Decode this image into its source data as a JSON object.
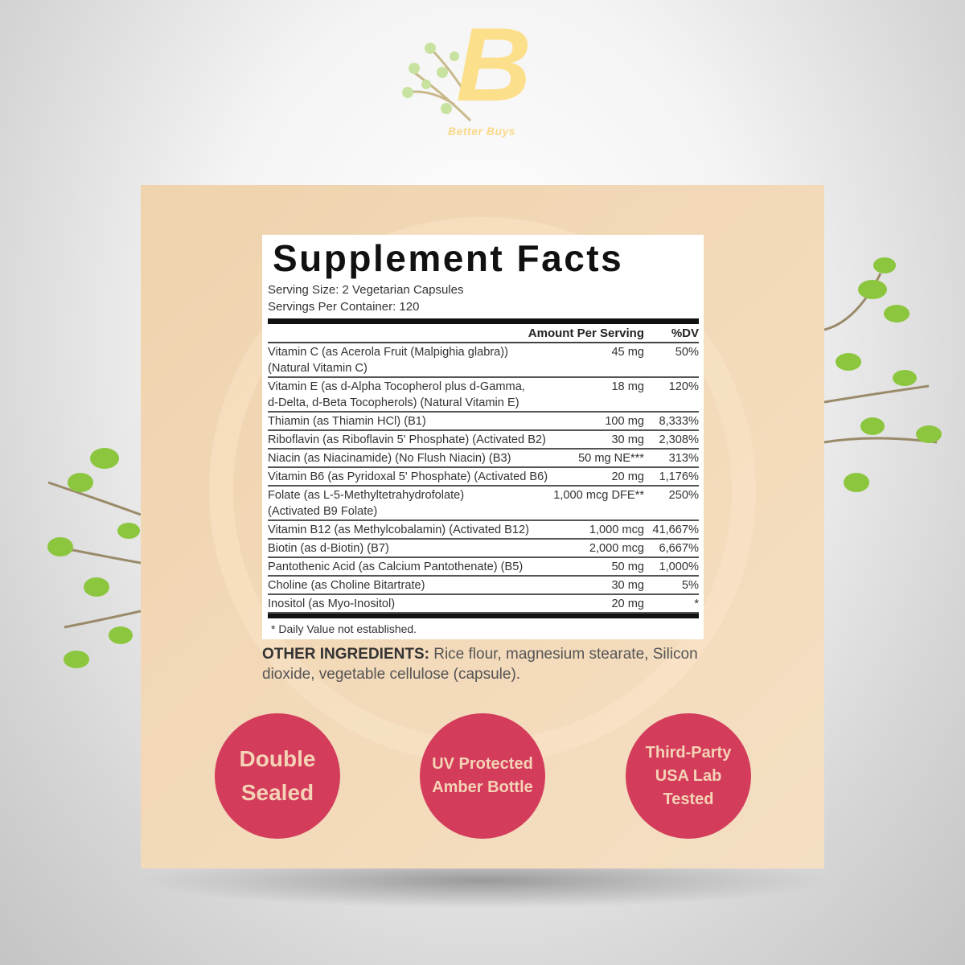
{
  "brand": {
    "name": "Better Buys",
    "letter": "B",
    "color": "#fcdf8a"
  },
  "label": {
    "title": "Supplement Facts",
    "serving_size": "Serving Size: 2 Vegetarian Capsules",
    "servings_per_container": "Servings Per Container: 120",
    "col_amount": "Amount Per Serving",
    "col_dv": "%DV",
    "rows": [
      {
        "name": "Vitamin C (as Acerola Fruit (Malpighia glabra))\n(Natural Vitamin C)",
        "amount": "45 mg",
        "dv": "50%"
      },
      {
        "name": "Vitamin E (as d-Alpha Tocopherol plus d-Gamma,\nd-Delta, d-Beta Tocopherols) (Natural Vitamin E)",
        "amount": "18 mg",
        "dv": "120%"
      },
      {
        "name": "Thiamin (as Thiamin HCl) (B1)",
        "amount": "100 mg",
        "dv": "8,333%"
      },
      {
        "name": "Riboflavin (as Riboflavin 5' Phosphate) (Activated B2)",
        "amount": "30 mg",
        "dv": "2,308%"
      },
      {
        "name": "Niacin (as Niacinamide) (No Flush Niacin) (B3)",
        "amount": "50 mg NE***",
        "dv": "313%"
      },
      {
        "name": "Vitamin B6 (as Pyridoxal 5' Phosphate) (Activated B6)",
        "amount": "20 mg",
        "dv": "1,176%"
      },
      {
        "name": "Folate (as L-5-Methyltetrahydrofolate)\n(Activated B9 Folate)",
        "amount": "1,000 mcg DFE**",
        "dv": "250%"
      },
      {
        "name": "Vitamin B12 (as Methylcobalamin) (Activated B12)",
        "amount": "1,000 mcg",
        "dv": "41,667%"
      },
      {
        "name": "Biotin (as d-Biotin) (B7)",
        "amount": "2,000 mcg",
        "dv": "6,667%"
      },
      {
        "name": "Pantothenic Acid (as Calcium Pantothenate) (B5)",
        "amount": "50 mg",
        "dv": "1,000%"
      },
      {
        "name": "Choline (as Choline Bitartrate)",
        "amount": "30 mg",
        "dv": "5%"
      },
      {
        "name": "Inositol (as Myo-Inositol)",
        "amount": "20 mg",
        "dv": "*"
      }
    ],
    "footnote": "* Daily Value not established."
  },
  "other_ingredients": {
    "label": "OTHER INGREDIENTS:",
    "text": " Rice flour, magnesium stearate, Silicon dioxide, vegetable cellulose (capsule)."
  },
  "badges": [
    {
      "text": "Double\nSealed"
    },
    {
      "text": "UV Protected\nAmber Bottle"
    },
    {
      "text": "Third-Party\nUSA Lab\nTested"
    }
  ],
  "colors": {
    "badge": "#d43c5b",
    "panel": "#f1d8b6",
    "leaf": "#8cc63f"
  }
}
